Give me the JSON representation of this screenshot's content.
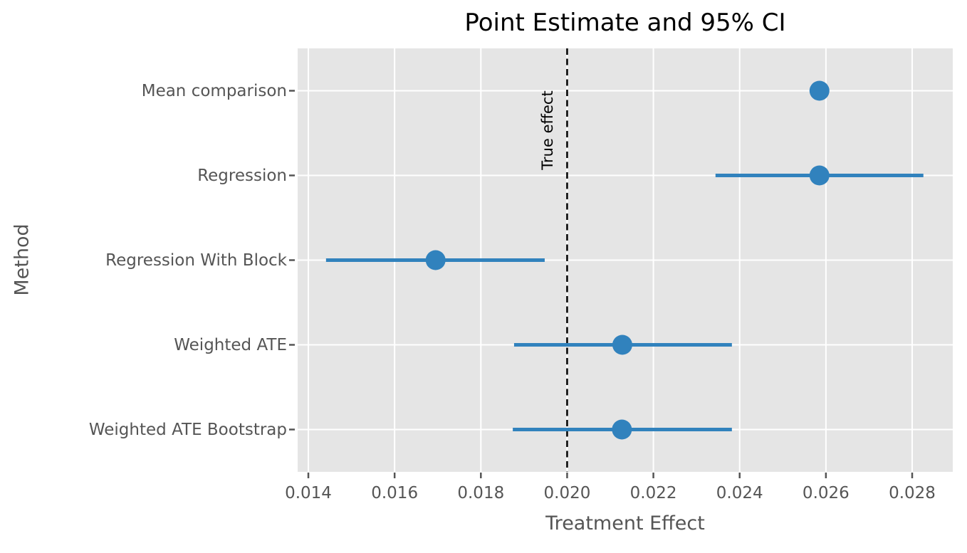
{
  "chart_data": {
    "type": "scatter",
    "subtype": "point-estimate-with-error-bars",
    "title": "Point Estimate and 95% CI",
    "xlabel": "Treatment Effect",
    "ylabel": "Method",
    "categories": [
      "Mean comparison",
      "Regression",
      "Regression With Block",
      "Weighted ATE",
      "Weighted ATE Bootstrap"
    ],
    "series": [
      {
        "name": "point_estimate_95ci",
        "estimates": [
          0.02585,
          0.02585,
          0.01695,
          0.02128,
          0.02127
        ],
        "ci_low": [
          0.02585,
          0.02344,
          0.01441,
          0.01877,
          0.01874
        ],
        "ci_high": [
          0.02585,
          0.02826,
          0.01948,
          0.02382,
          0.02382
        ]
      }
    ],
    "annotation": {
      "label": "True effect",
      "x": 0.02,
      "line_style": "dashed"
    },
    "xticks": [
      0.014,
      0.016,
      0.018,
      0.02,
      0.022,
      0.024,
      0.026,
      0.028
    ],
    "xtick_labels": [
      "0.014",
      "0.016",
      "0.018",
      "0.020",
      "0.022",
      "0.024",
      "0.026",
      "0.028"
    ],
    "xlim": [
      0.013752,
      0.028941
    ],
    "grid": true,
    "legend": false,
    "colors": {
      "point": "#3182bd",
      "ci_line": "#3182bd",
      "plot_background": "#e5e5e5",
      "gridline": "#ffffff",
      "tick_mark": "#555555",
      "axis_text": "#555555",
      "title_text": "#000000",
      "annotation_line": "#000000",
      "annotation_text": "#000000",
      "figure_background": "#ffffff"
    }
  }
}
